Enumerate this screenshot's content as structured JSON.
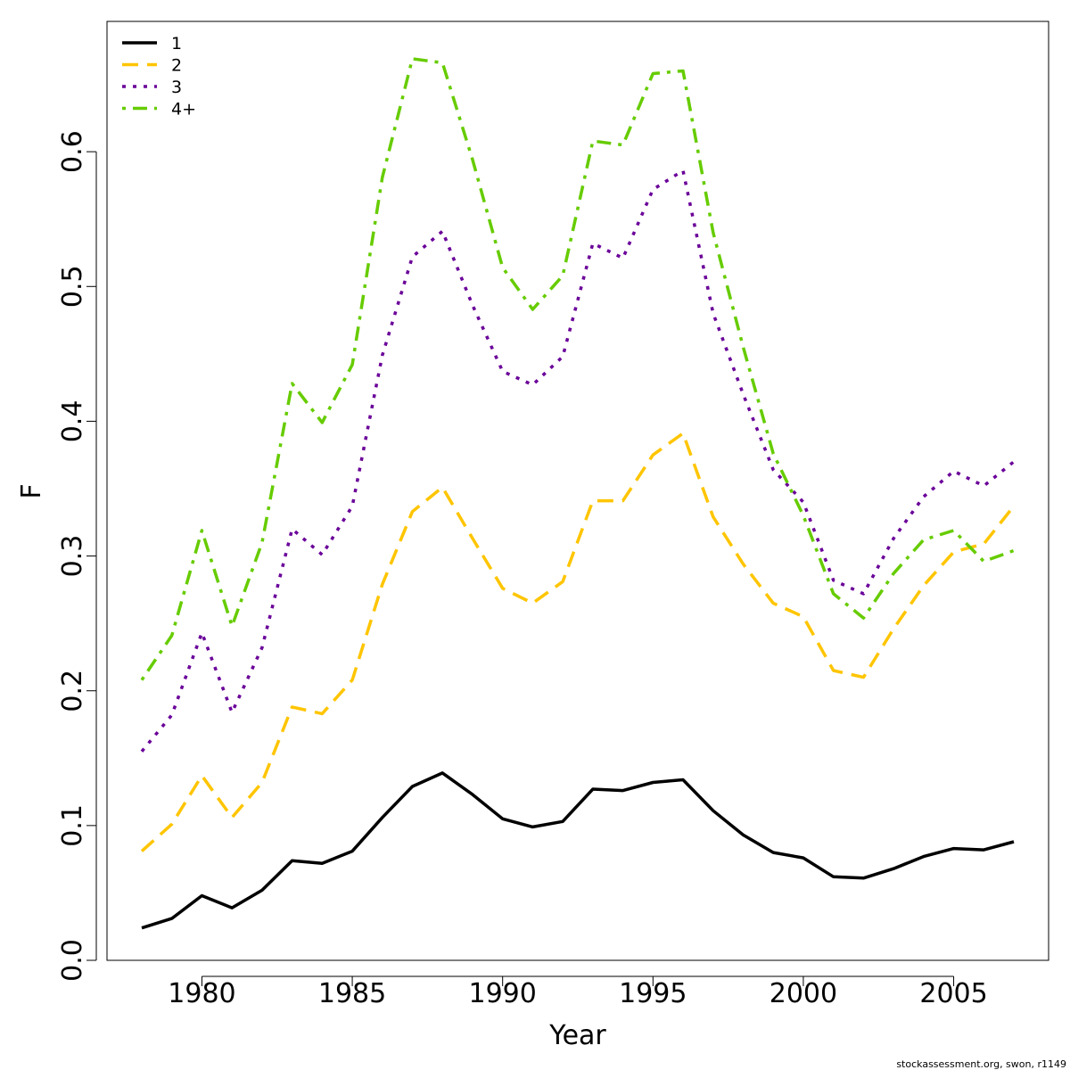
{
  "chart_data": {
    "type": "line",
    "title": "",
    "xlabel": "Year",
    "ylabel": "F",
    "xlim": [
      1977,
      2009
    ],
    "ylim": [
      0,
      0.7
    ],
    "x_ticks": [
      1980,
      1985,
      1990,
      1995,
      2000,
      2005
    ],
    "y_ticks": [
      0.0,
      0.1,
      0.2,
      0.3,
      0.4,
      0.5,
      0.6
    ],
    "y_tick_labels": [
      "0.0",
      "0.1",
      "0.2",
      "0.3",
      "0.4",
      "0.5",
      "0.6"
    ],
    "grid": false,
    "legend_position": "top-left",
    "x": [
      1978,
      1979,
      1980,
      1981,
      1982,
      1983,
      1984,
      1985,
      1986,
      1987,
      1988,
      1989,
      1990,
      1991,
      1992,
      1993,
      1994,
      1995,
      1996,
      1997,
      1998,
      1999,
      2000,
      2001,
      2002,
      2003,
      2004,
      2005,
      2006,
      2007
    ],
    "series": [
      {
        "name": "1",
        "color": "#000000",
        "dash": "solid",
        "values": [
          0.024,
          0.031,
          0.048,
          0.039,
          0.052,
          0.074,
          0.072,
          0.081,
          0.106,
          0.129,
          0.139,
          0.123,
          0.105,
          0.099,
          0.103,
          0.127,
          0.126,
          0.132,
          0.134,
          0.111,
          0.093,
          0.08,
          0.076,
          0.062,
          0.061,
          0.068,
          0.077,
          0.083,
          0.082,
          0.088
        ]
      },
      {
        "name": "2",
        "color": "#FFC500",
        "dash": "dashed",
        "values": [
          0.081,
          0.101,
          0.137,
          0.106,
          0.132,
          0.188,
          0.183,
          0.208,
          0.279,
          0.333,
          0.351,
          0.313,
          0.276,
          0.265,
          0.281,
          0.341,
          0.341,
          0.375,
          0.391,
          0.329,
          0.294,
          0.265,
          0.255,
          0.215,
          0.21,
          0.246,
          0.278,
          0.303,
          0.309,
          0.337
        ]
      },
      {
        "name": "3",
        "color": "#6A0099",
        "dash": "dotted",
        "values": [
          0.155,
          0.182,
          0.243,
          0.184,
          0.232,
          0.32,
          0.301,
          0.337,
          0.449,
          0.522,
          0.541,
          0.486,
          0.437,
          0.427,
          0.448,
          0.532,
          0.521,
          0.572,
          0.586,
          0.48,
          0.42,
          0.364,
          0.34,
          0.282,
          0.272,
          0.313,
          0.344,
          0.363,
          0.352,
          0.37
        ]
      },
      {
        "name": "4+",
        "color": "#66CC00",
        "dash": "dotdash",
        "values": [
          0.208,
          0.241,
          0.319,
          0.248,
          0.31,
          0.428,
          0.399,
          0.442,
          0.581,
          0.669,
          0.666,
          0.594,
          0.514,
          0.483,
          0.508,
          0.608,
          0.605,
          0.658,
          0.66,
          0.54,
          0.455,
          0.376,
          0.33,
          0.272,
          0.254,
          0.287,
          0.312,
          0.319,
          0.296,
          0.304
        ]
      }
    ]
  },
  "footer": {
    "note": "stockassessment.org, swon, r1149"
  }
}
